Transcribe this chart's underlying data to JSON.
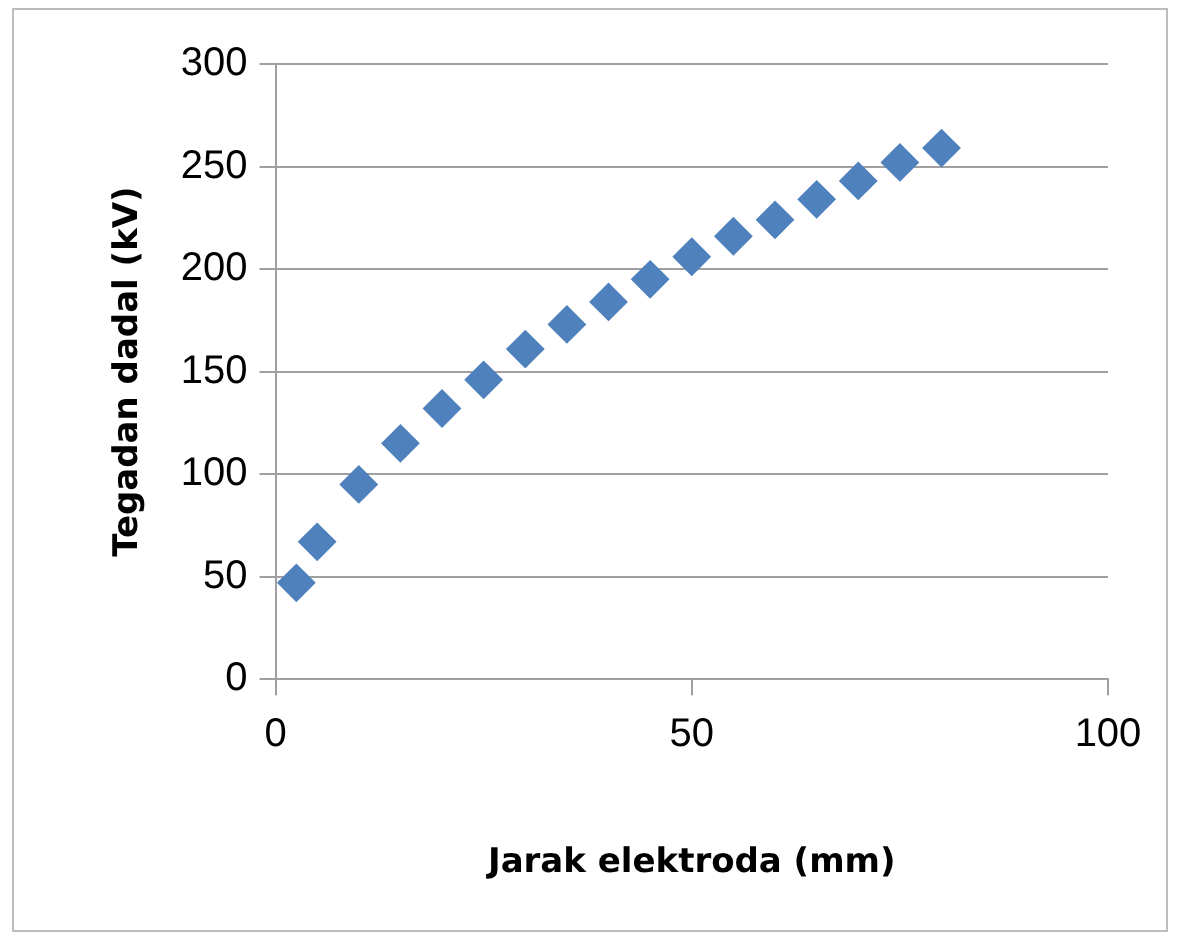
{
  "chart_data": {
    "type": "scatter",
    "xlabel": "Jarak elektroda (mm)",
    "ylabel": "Tegadan dadal (kV)",
    "x": [
      2.5,
      5,
      10,
      15,
      20,
      25,
      30,
      35,
      40,
      45,
      50,
      55,
      60,
      65,
      70,
      75,
      80
    ],
    "series": [
      {
        "color": "#4f81bd",
        "values": [
          47,
          67,
          95,
          115,
          132,
          146,
          161,
          173,
          184,
          195,
          206,
          216,
          224,
          234,
          243,
          252,
          259
        ]
      }
    ],
    "xlim": [
      0,
      100
    ],
    "xticks": [
      0,
      50,
      100
    ],
    "ylim": [
      0,
      300
    ],
    "yticks": [
      0,
      50,
      100,
      150,
      200,
      250,
      300
    ],
    "grid": "y",
    "legend": false,
    "marker": "diamond"
  }
}
